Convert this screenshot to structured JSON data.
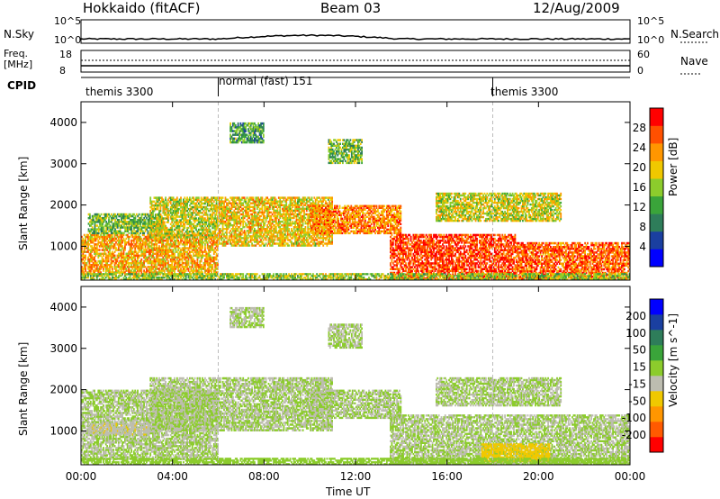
{
  "header": {
    "radar": "Hokkaido (fitACF)",
    "beam": "Beam 03",
    "date": "12/Aug/2009"
  },
  "top_panels": {
    "nsky_label": "N.Sky",
    "nsearch_label": "N.Search",
    "noise_ticks_left": [
      "10^5",
      "10^0"
    ],
    "noise_ticks_right": [
      "10^5",
      "10^0"
    ],
    "freq_label_1": "Freq.",
    "freq_label_2": "[MHz]",
    "freq_ticks": [
      "18",
      "8"
    ],
    "nave_label": "Nave",
    "nave_ticks": [
      "60",
      "0"
    ],
    "cpid_label": "CPID",
    "cpid_segments": [
      {
        "label": "themis 3300",
        "start": 0,
        "end": 6
      },
      {
        "label": "normal (fast) 151",
        "start": 6,
        "end": 18
      },
      {
        "label": "themis 3300",
        "start": 18,
        "end": 24
      }
    ]
  },
  "x_axis": {
    "label": "Time UT",
    "ticks": [
      "00:00",
      "04:00",
      "08:00",
      "12:00",
      "16:00",
      "20:00",
      "00:00"
    ],
    "range_hours": [
      0,
      24
    ]
  },
  "chart_data": [
    {
      "type": "heatmap",
      "title": "",
      "ylabel": "Slant Range [km]",
      "yticks": [
        "1000",
        "2000",
        "3000",
        "4000"
      ],
      "ylim": [
        180,
        4500
      ],
      "colorbar_label": "Power [dB]",
      "colorbar_ticks": [
        "28",
        "24",
        "20",
        "16",
        "12",
        "8",
        "4"
      ],
      "colorbar_range": [
        0,
        32
      ],
      "colors": [
        "#0000ff",
        "#1a3fa0",
        "#2e7d5a",
        "#3aa43a",
        "#8ccc2c",
        "#f0c800",
        "#ff9600",
        "#ff5000",
        "#ff0000"
      ],
      "regions": [
        {
          "t": [
            0.0,
            6.0
          ],
          "r": [
            300,
            1300
          ],
          "level": 22
        },
        {
          "t": [
            0.3,
            3.5
          ],
          "r": [
            1300,
            1800
          ],
          "level": 14
        },
        {
          "t": [
            3.0,
            6.0
          ],
          "r": [
            1200,
            2200
          ],
          "level": 18
        },
        {
          "t": [
            6.0,
            11.0
          ],
          "r": [
            1000,
            2200
          ],
          "level": 20
        },
        {
          "t": [
            10.0,
            14.0
          ],
          "r": [
            1300,
            2000
          ],
          "level": 24
        },
        {
          "t": [
            13.5,
            19.0
          ],
          "r": [
            200,
            1300
          ],
          "level": 28
        },
        {
          "t": [
            19.0,
            24.0
          ],
          "r": [
            200,
            1100
          ],
          "level": 26
        },
        {
          "t": [
            15.5,
            21.0
          ],
          "r": [
            1600,
            2300
          ],
          "level": 18
        },
        {
          "t": [
            6.5,
            8.0
          ],
          "r": [
            3500,
            4000
          ],
          "level": 12
        },
        {
          "t": [
            10.8,
            12.3
          ],
          "r": [
            3000,
            3600
          ],
          "level": 14
        },
        {
          "t": [
            0.0,
            24.0
          ],
          "r": [
            180,
            350
          ],
          "level": 16
        }
      ]
    },
    {
      "type": "heatmap",
      "title": "",
      "ylabel": "Slant Range [km]",
      "yticks": [
        "1000",
        "2000",
        "3000",
        "4000"
      ],
      "ylim": [
        180,
        4500
      ],
      "colorbar_label": "Velocity [m s^-1]",
      "colorbar_ticks": [
        "200",
        "100",
        "50",
        "15",
        "-15",
        "-50",
        "-100",
        "-200"
      ],
      "colorbar_range": [
        -250,
        250
      ],
      "colors": [
        "#ff0000",
        "#ff5a00",
        "#ff9600",
        "#f0c800",
        "#bdbdb0",
        "#8ccc2c",
        "#3aa43a",
        "#2e7d5a",
        "#1a3fa0",
        "#0000ff"
      ],
      "regions": [
        {
          "t": [
            0.0,
            6.0
          ],
          "r": [
            300,
            2000
          ],
          "level": 0
        },
        {
          "t": [
            3.0,
            11.0
          ],
          "r": [
            1000,
            2300
          ],
          "level": 0
        },
        {
          "t": [
            10.0,
            14.0
          ],
          "r": [
            1300,
            2000
          ],
          "level": 0
        },
        {
          "t": [
            13.5,
            24.0
          ],
          "r": [
            200,
            1400
          ],
          "level": 0
        },
        {
          "t": [
            15.5,
            21.0
          ],
          "r": [
            1600,
            2300
          ],
          "level": 0
        },
        {
          "t": [
            17.5,
            20.5
          ],
          "r": [
            250,
            700
          ],
          "level": -80
        },
        {
          "t": [
            0.3,
            3.0
          ],
          "r": [
            900,
            1200
          ],
          "level": -40
        },
        {
          "t": [
            6.5,
            8.0
          ],
          "r": [
            3500,
            4000
          ],
          "level": 0
        },
        {
          "t": [
            10.8,
            12.3
          ],
          "r": [
            3000,
            3600
          ],
          "level": 0
        },
        {
          "t": [
            0.0,
            24.0
          ],
          "r": [
            180,
            350
          ],
          "level": 20
        }
      ]
    }
  ]
}
